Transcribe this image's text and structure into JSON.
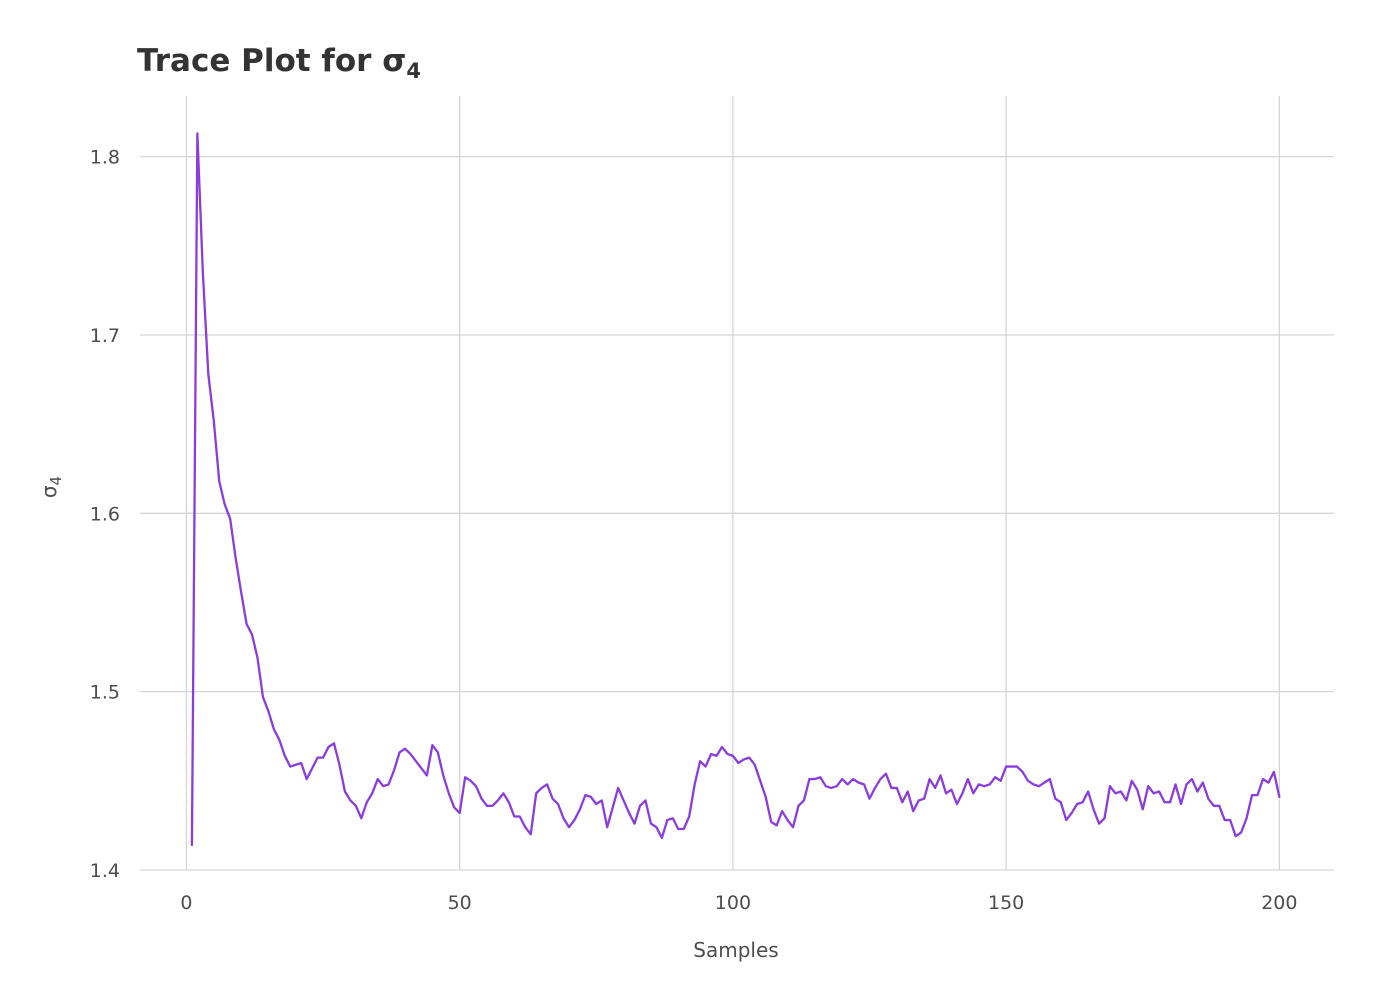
{
  "chart_data": {
    "type": "line",
    "title": "Trace Plot for σ₄",
    "title_parts": {
      "main": "Trace Plot for σ",
      "subscript": "4"
    },
    "xlabel": "Samples",
    "ylabel": "σ₄",
    "ylabel_parts": {
      "main": "σ",
      "subscript": "4"
    },
    "xlim": [
      -8.5,
      210
    ],
    "ylim": [
      1.4,
      1.834
    ],
    "x_ticks": [
      0,
      50,
      100,
      150,
      200
    ],
    "x_tick_labels": [
      "0",
      "50",
      "100",
      "150",
      "200"
    ],
    "y_ticks": [
      1.4,
      1.5,
      1.6,
      1.7,
      1.8
    ],
    "y_tick_labels": [
      "1.4",
      "1.5",
      "1.6",
      "1.7",
      "1.8"
    ],
    "grid": true,
    "line_color": "#8a3ddb",
    "series": [
      {
        "x_start": 1,
        "x_step": 1,
        "values": [
          1.414,
          1.813,
          1.735,
          1.678,
          1.652,
          1.618,
          1.605,
          1.597,
          1.575,
          1.556,
          1.538,
          1.532,
          1.519,
          1.497,
          1.489,
          1.479,
          1.473,
          1.464,
          1.458,
          1.459,
          1.46,
          1.451,
          1.457,
          1.463,
          1.463,
          1.469,
          1.471,
          1.459,
          1.444,
          1.439,
          1.436,
          1.429,
          1.438,
          1.443,
          1.451,
          1.447,
          1.448,
          1.456,
          1.466,
          1.468,
          1.465,
          1.461,
          1.457,
          1.453,
          1.47,
          1.466,
          1.453,
          1.443,
          1.435,
          1.432,
          1.452,
          1.45,
          1.447,
          1.44,
          1.436,
          1.436,
          1.439,
          1.443,
          1.438,
          1.43,
          1.43,
          1.424,
          1.42,
          1.443,
          1.446,
          1.448,
          1.44,
          1.437,
          1.429,
          1.424,
          1.428,
          1.434,
          1.442,
          1.441,
          1.437,
          1.439,
          1.424,
          1.435,
          1.446,
          1.439,
          1.432,
          1.426,
          1.436,
          1.439,
          1.426,
          1.424,
          1.418,
          1.428,
          1.429,
          1.423,
          1.423,
          1.43,
          1.448,
          1.461,
          1.458,
          1.465,
          1.464,
          1.469,
          1.465,
          1.464,
          1.46,
          1.462,
          1.463,
          1.459,
          1.45,
          1.441,
          1.427,
          1.425,
          1.433,
          1.428,
          1.424,
          1.436,
          1.439,
          1.451,
          1.451,
          1.452,
          1.447,
          1.446,
          1.447,
          1.451,
          1.448,
          1.451,
          1.449,
          1.448,
          1.44,
          1.446,
          1.451,
          1.454,
          1.446,
          1.446,
          1.438,
          1.444,
          1.433,
          1.439,
          1.44,
          1.451,
          1.446,
          1.453,
          1.443,
          1.445,
          1.437,
          1.443,
          1.451,
          1.443,
          1.448,
          1.447,
          1.448,
          1.452,
          1.45,
          1.458,
          1.458,
          1.458,
          1.455,
          1.45,
          1.448,
          1.447,
          1.449,
          1.451,
          1.44,
          1.438,
          1.428,
          1.432,
          1.437,
          1.438,
          1.444,
          1.434,
          1.426,
          1.429,
          1.447,
          1.443,
          1.444,
          1.439,
          1.45,
          1.445,
          1.434,
          1.447,
          1.443,
          1.444,
          1.438,
          1.438,
          1.448,
          1.437,
          1.448,
          1.451,
          1.444,
          1.449,
          1.44,
          1.436,
          1.436,
          1.428,
          1.428,
          1.419,
          1.421,
          1.429,
          1.442,
          1.442,
          1.451,
          1.449,
          1.455,
          1.441
        ]
      }
    ]
  }
}
